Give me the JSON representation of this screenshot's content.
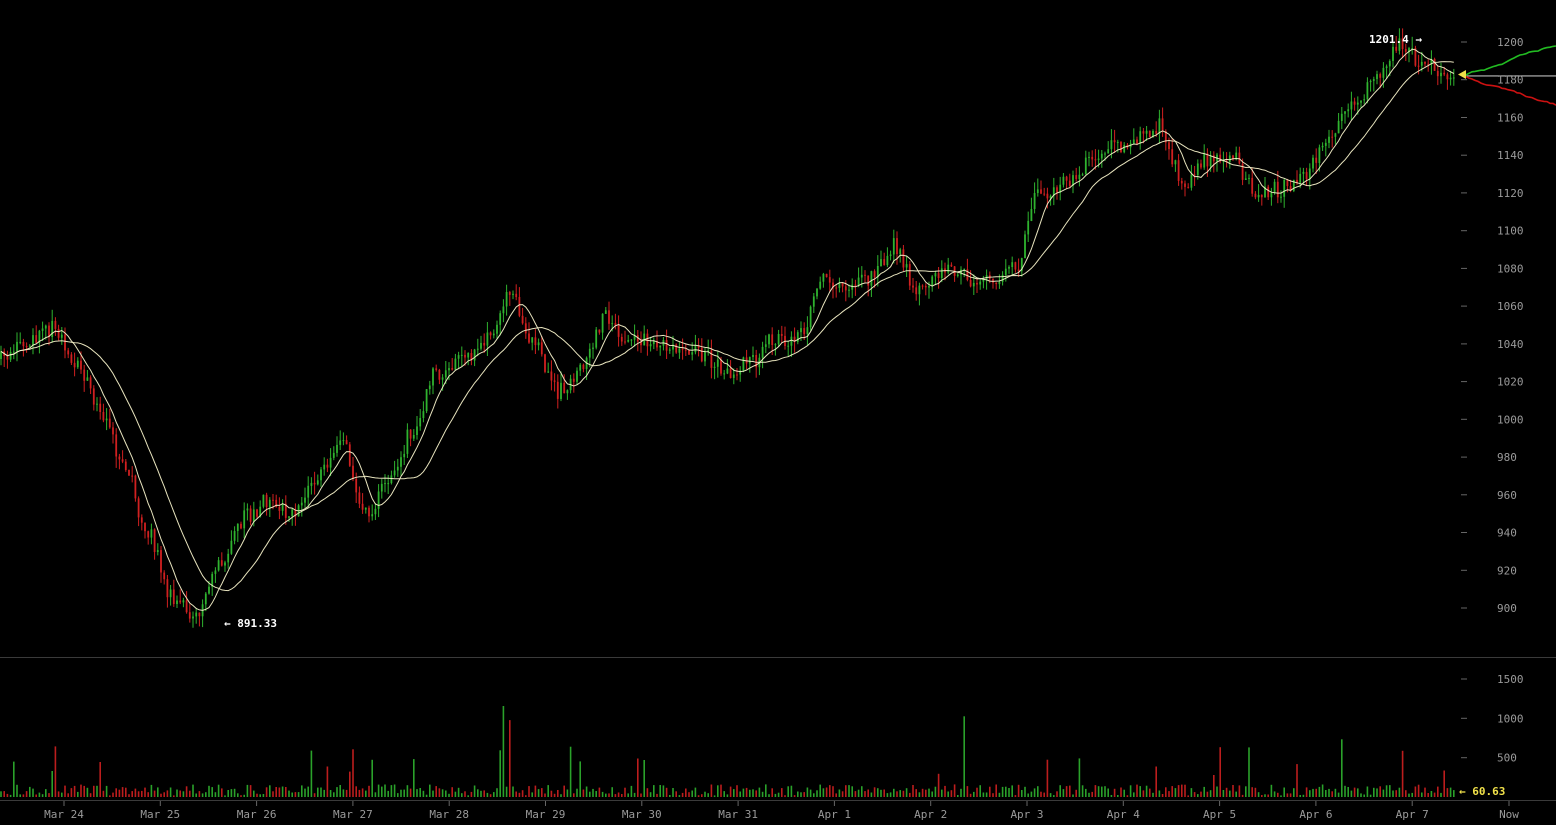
{
  "chart_data": {
    "type": "candlestick",
    "title": "",
    "xlabel": "",
    "ylabel": "",
    "x_ticks": [
      "Mar 24",
      "Mar 25",
      "Mar 26",
      "Mar 27",
      "Mar 28",
      "Mar 29",
      "Mar 30",
      "Mar 31",
      "Apr 1",
      "Apr 2",
      "Apr 3",
      "Apr 4",
      "Apr 5",
      "Apr 6",
      "Apr 7",
      "Now"
    ],
    "price_axis": {
      "ticks": [
        900,
        920,
        940,
        960,
        980,
        1000,
        1020,
        1040,
        1060,
        1080,
        1100,
        1120,
        1140,
        1160,
        1180,
        1200
      ],
      "range": [
        880,
        1208
      ]
    },
    "volume_axis": {
      "ticks": [
        500,
        1000,
        1500
      ],
      "range": [
        0,
        1700
      ]
    },
    "price_path": [
      {
        "t": "Mar 24",
        "v": 1040
      },
      {
        "t": "Mar 24",
        "v": 1048
      },
      {
        "t": "Mar 24",
        "v": 1030
      },
      {
        "t": "Mar 24",
        "v": 1005
      },
      {
        "t": "Mar 25",
        "v": 975
      },
      {
        "t": "Mar 25",
        "v": 940
      },
      {
        "t": "Mar 25",
        "v": 905
      },
      {
        "t": "Mar 25",
        "v": 895
      },
      {
        "t": "Mar 26",
        "v": 925
      },
      {
        "t": "Mar 26",
        "v": 948
      },
      {
        "t": "Mar 26",
        "v": 957
      },
      {
        "t": "Mar 26",
        "v": 951
      },
      {
        "t": "Mar 27",
        "v": 970
      },
      {
        "t": "Mar 27",
        "v": 990
      },
      {
        "t": "Mar 27",
        "v": 950
      },
      {
        "t": "Mar 27",
        "v": 965
      },
      {
        "t": "Mar 28",
        "v": 995
      },
      {
        "t": "Mar 28",
        "v": 1025
      },
      {
        "t": "Mar 28",
        "v": 1030
      },
      {
        "t": "Mar 28",
        "v": 1042
      },
      {
        "t": "Mar 29",
        "v": 1065
      },
      {
        "t": "Mar 29",
        "v": 1042
      },
      {
        "t": "Mar 29",
        "v": 1015
      },
      {
        "t": "Mar 29",
        "v": 1025
      },
      {
        "t": "Mar 30",
        "v": 1055
      },
      {
        "t": "Mar 30",
        "v": 1040
      },
      {
        "t": "Mar 30",
        "v": 1042
      },
      {
        "t": "Mar 30",
        "v": 1038
      },
      {
        "t": "Mar 31",
        "v": 1035
      },
      {
        "t": "Mar 31",
        "v": 1025
      },
      {
        "t": "Mar 31",
        "v": 1030
      },
      {
        "t": "Mar 31",
        "v": 1042
      },
      {
        "t": "Apr 1",
        "v": 1043
      },
      {
        "t": "Apr 1",
        "v": 1075
      },
      {
        "t": "Apr 1",
        "v": 1068
      },
      {
        "t": "Apr 1",
        "v": 1075
      },
      {
        "t": "Apr 2",
        "v": 1092
      },
      {
        "t": "Apr 2",
        "v": 1068
      },
      {
        "t": "Apr 2",
        "v": 1080
      },
      {
        "t": "Apr 2",
        "v": 1075
      },
      {
        "t": "Apr 3",
        "v": 1073
      },
      {
        "t": "Apr 3",
        "v": 1080
      },
      {
        "t": "Apr 3",
        "v": 1120
      },
      {
        "t": "Apr 3",
        "v": 1125
      },
      {
        "t": "Apr 4",
        "v": 1135
      },
      {
        "t": "Apr 4",
        "v": 1145
      },
      {
        "t": "Apr 4",
        "v": 1148
      },
      {
        "t": "Apr 4",
        "v": 1155
      },
      {
        "t": "Apr 5",
        "v": 1125
      },
      {
        "t": "Apr 5",
        "v": 1138
      },
      {
        "t": "Apr 5",
        "v": 1140
      },
      {
        "t": "Apr 5",
        "v": 1120
      },
      {
        "t": "Apr 6",
        "v": 1122
      },
      {
        "t": "Apr 6",
        "v": 1128
      },
      {
        "t": "Apr 6",
        "v": 1150
      },
      {
        "t": "Apr 6",
        "v": 1168
      },
      {
        "t": "Apr 7",
        "v": 1180
      },
      {
        "t": "Apr 7",
        "v": 1198
      },
      {
        "t": "Apr 7",
        "v": 1188
      },
      {
        "t": "Apr 7",
        "v": 1182
      }
    ],
    "annotations": {
      "high_label": "1201.4 →",
      "low_label": "← 891.33",
      "last_volume_label": "← 60.63"
    },
    "colors": {
      "up": "#2fb32f",
      "down": "#d02020",
      "ma": "#f4f0c8",
      "bid_depth": "#22bb22",
      "ask_depth": "#cc1111",
      "last_price_line": "#bbbbbb",
      "axis_text": "#9a9a9a",
      "last_marker": "#f0e04a",
      "background": "#000000"
    },
    "grid": false,
    "legend": "none"
  }
}
